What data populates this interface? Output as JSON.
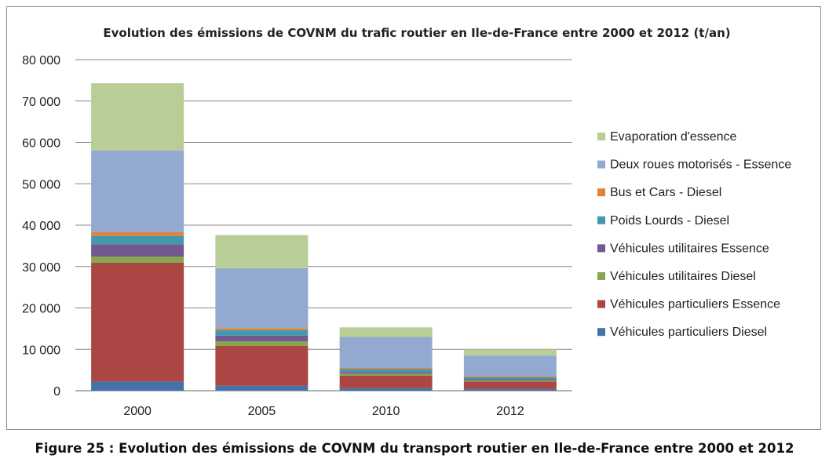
{
  "chart_data": {
    "type": "bar",
    "stacked": true,
    "title": "Evolution des émissions de COVNM du trafic routier en Ile-de-France entre 2000 et 2012 (t/an)",
    "categories": [
      "2000",
      "2005",
      "2010",
      "2012"
    ],
    "ylim": [
      0,
      80000
    ],
    "yticks": [
      0,
      10000,
      20000,
      30000,
      40000,
      50000,
      60000,
      70000,
      80000
    ],
    "ytick_labels": [
      "0",
      "10 000",
      "20 000",
      "30 000",
      "40 000",
      "50 000",
      "60 000",
      "70 000",
      "80 000"
    ],
    "grid": true,
    "legend_position": "right",
    "series": [
      {
        "name": "Véhicules particuliers Diesel",
        "color": "#4572a7",
        "values": [
          2200,
          1200,
          600,
          400
        ]
      },
      {
        "name": "Véhicules particuliers Essence",
        "color": "#aa4643",
        "values": [
          28700,
          9600,
          3000,
          1800
        ]
      },
      {
        "name": "Véhicules utilitaires Diesel",
        "color": "#89a54e",
        "values": [
          1500,
          1100,
          500,
          300
        ]
      },
      {
        "name": "Véhicules utilitaires Essence",
        "color": "#71588f",
        "values": [
          3000,
          1400,
          400,
          250
        ]
      },
      {
        "name": "Poids Lourds - Diesel",
        "color": "#4198af",
        "values": [
          2000,
          1300,
          700,
          500
        ]
      },
      {
        "name": "Bus et Cars - Diesel",
        "color": "#db843d",
        "values": [
          900,
          500,
          300,
          250
        ]
      },
      {
        "name": "Deux roues motorisés - Essence",
        "color": "#93a9cf",
        "values": [
          19700,
          14500,
          7500,
          5000
        ]
      },
      {
        "name": "Evaporation d'essence",
        "color": "#b9cd96",
        "values": [
          16300,
          8000,
          2300,
          1500
        ]
      }
    ]
  },
  "caption": "Figure 25 : Evolution des émissions de COVNM du transport routier en Ile-de-France entre 2000 et 2012"
}
